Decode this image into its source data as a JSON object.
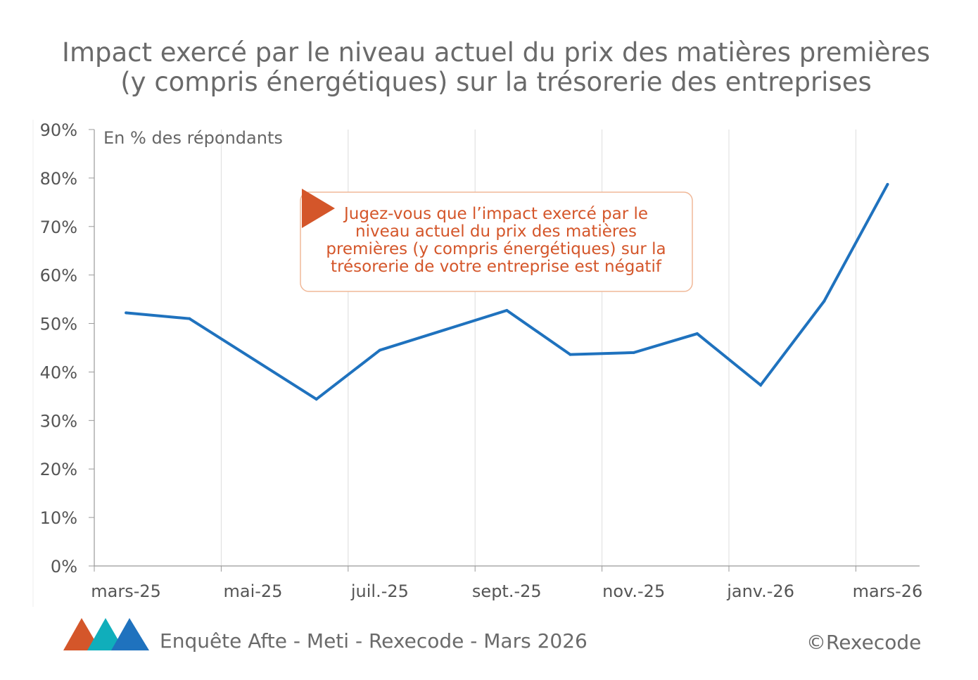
{
  "title_line1": "Impact exercé par le niveau actuel du prix des matières premières",
  "title_line2": "(y compris énergétiques) sur la trésorerie des entreprises",
  "footer": {
    "source": "Enquête Afte - Meti - Rexecode  - Mars 2026",
    "copyright": "©Rexecode"
  },
  "colors": {
    "line": "#1f72be",
    "annotation": "#d4562a",
    "logo": [
      "#d4562a",
      "#10aebb",
      "#1f72be"
    ]
  },
  "chart_data": {
    "type": "line",
    "unit_label": "En % des répondants",
    "annotation": [
      "Jugez-vous que l’impact exercé par le",
      "niveau actuel du prix des matières",
      "premières (y compris énergétiques) sur la",
      "trésorerie de votre entreprise est négatif"
    ],
    "ylim": [
      0,
      90
    ],
    "yticks": [
      "0%",
      "10%",
      "20%",
      "30%",
      "40%",
      "50%",
      "60%",
      "70%",
      "80%",
      "90%"
    ],
    "xticks": [
      {
        "label": "mars-25",
        "month": "2025-03"
      },
      {
        "label": "mai-25",
        "month": "2025-05"
      },
      {
        "label": "juil.-25",
        "month": "2025-07"
      },
      {
        "label": "sept.-25",
        "month": "2025-09"
      },
      {
        "label": "nov.-25",
        "month": "2025-11"
      },
      {
        "label": "janv.-26",
        "month": "2026-01"
      },
      {
        "label": "mars-26",
        "month": "2026-03"
      }
    ],
    "grid": "vertical",
    "series": [
      {
        "points": [
          {
            "x": "2025-03",
            "y": 52.2
          },
          {
            "x": "2025-04",
            "y": 51.0
          },
          {
            "x": "2025-06",
            "y": 34.4
          },
          {
            "x": "2025-07",
            "y": 44.5
          },
          {
            "x": "2025-09",
            "y": 52.7
          },
          {
            "x": "2025-10",
            "y": 43.6
          },
          {
            "x": "2025-11",
            "y": 44.0
          },
          {
            "x": "2025-12",
            "y": 47.9
          },
          {
            "x": "2026-01",
            "y": 37.3
          },
          {
            "x": "2026-02",
            "y": 54.6
          },
          {
            "x": "2026-03",
            "y": 78.7
          }
        ]
      }
    ]
  }
}
